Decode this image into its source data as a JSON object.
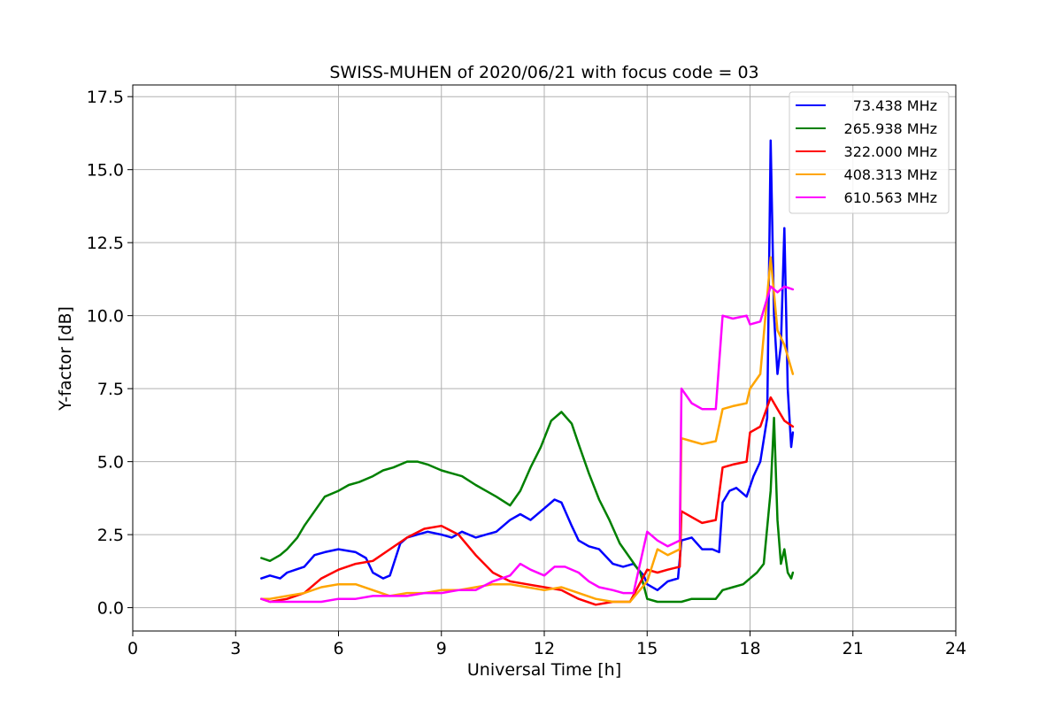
{
  "chart_data": {
    "type": "line",
    "title": "SWISS-MUHEN of 2020/06/21 with focus code = 03",
    "xlabel": "Universal Time [h]",
    "ylabel": "Y-factor [dB]",
    "xlim": [
      0,
      24
    ],
    "ylim": [
      -0.8,
      17.9
    ],
    "xticks": [
      0,
      3,
      6,
      9,
      12,
      15,
      18,
      21,
      24
    ],
    "xtick_labels": [
      "0",
      "3",
      "6",
      "9",
      "12",
      "15",
      "18",
      "21",
      "24"
    ],
    "yticks": [
      0.0,
      2.5,
      5.0,
      7.5,
      10.0,
      12.5,
      15.0,
      17.5
    ],
    "ytick_labels": [
      "0.0",
      "2.5",
      "5.0",
      "7.5",
      "10.0",
      "12.5",
      "15.0",
      "17.5"
    ],
    "grid": true,
    "legend_position": "top-right",
    "series": [
      {
        "name": " 73.438 MHz",
        "color": "#0000ff",
        "x": [
          3.75,
          4.0,
          4.3,
          4.5,
          4.75,
          5.0,
          5.3,
          5.6,
          6.0,
          6.5,
          6.8,
          7.0,
          7.3,
          7.5,
          7.8,
          8.0,
          8.3,
          8.6,
          9.0,
          9.3,
          9.6,
          10.0,
          10.3,
          10.6,
          11.0,
          11.3,
          11.6,
          12.0,
          12.3,
          12.5,
          12.8,
          13.0,
          13.3,
          13.6,
          14.0,
          14.3,
          14.6,
          14.9,
          15.0,
          15.3,
          15.6,
          15.9,
          16.0,
          16.3,
          16.6,
          16.9,
          17.1,
          17.2,
          17.4,
          17.6,
          17.9,
          18.1,
          18.3,
          18.5,
          18.6,
          18.7,
          18.8,
          18.9,
          19.0,
          19.1,
          19.2,
          19.25
        ],
        "y": [
          1.0,
          1.1,
          1.0,
          1.2,
          1.3,
          1.4,
          1.8,
          1.9,
          2.0,
          1.9,
          1.7,
          1.2,
          1.0,
          1.1,
          2.2,
          2.4,
          2.5,
          2.6,
          2.5,
          2.4,
          2.6,
          2.4,
          2.5,
          2.6,
          3.0,
          3.2,
          3.0,
          3.4,
          3.7,
          3.6,
          2.8,
          2.3,
          2.1,
          2.0,
          1.5,
          1.4,
          1.5,
          1.1,
          0.8,
          0.6,
          0.9,
          1.0,
          2.3,
          2.4,
          2.0,
          2.0,
          1.9,
          3.6,
          4.0,
          4.1,
          3.8,
          4.5,
          5.0,
          6.5,
          16.0,
          10.0,
          8.0,
          9.0,
          13.0,
          7.5,
          5.5,
          6.0
        ]
      },
      {
        "name": "265.938 MHz",
        "color": "#008000",
        "x": [
          3.75,
          4.0,
          4.3,
          4.5,
          4.8,
          5.0,
          5.3,
          5.6,
          6.0,
          6.3,
          6.6,
          7.0,
          7.3,
          7.6,
          8.0,
          8.3,
          8.6,
          9.0,
          9.3,
          9.6,
          10.0,
          10.3,
          10.6,
          11.0,
          11.3,
          11.6,
          11.9,
          12.2,
          12.5,
          12.8,
          13.0,
          13.3,
          13.6,
          13.9,
          14.2,
          14.5,
          14.8,
          15.0,
          15.3,
          15.6,
          16.0,
          16.3,
          16.6,
          17.0,
          17.2,
          17.5,
          17.8,
          18.0,
          18.2,
          18.4,
          18.6,
          18.7,
          18.8,
          18.9,
          19.0,
          19.1,
          19.2,
          19.25
        ],
        "y": [
          1.7,
          1.6,
          1.8,
          2.0,
          2.4,
          2.8,
          3.3,
          3.8,
          4.0,
          4.2,
          4.3,
          4.5,
          4.7,
          4.8,
          5.0,
          5.0,
          4.9,
          4.7,
          4.6,
          4.5,
          4.2,
          4.0,
          3.8,
          3.5,
          4.0,
          4.8,
          5.5,
          6.4,
          6.7,
          6.3,
          5.6,
          4.6,
          3.7,
          3.0,
          2.2,
          1.7,
          1.2,
          0.3,
          0.2,
          0.2,
          0.2,
          0.3,
          0.3,
          0.3,
          0.6,
          0.7,
          0.8,
          1.0,
          1.2,
          1.5,
          4.0,
          6.5,
          3.0,
          1.5,
          2.0,
          1.2,
          1.0,
          1.2
        ]
      },
      {
        "name": "322.000 MHz",
        "color": "#ff0000",
        "x": [
          3.75,
          4.0,
          4.5,
          5.0,
          5.5,
          6.0,
          6.5,
          7.0,
          7.5,
          8.0,
          8.5,
          9.0,
          9.5,
          10.0,
          10.5,
          11.0,
          11.5,
          12.0,
          12.5,
          13.0,
          13.5,
          14.0,
          14.5,
          15.0,
          15.3,
          15.6,
          15.95,
          16.0,
          16.3,
          16.6,
          17.0,
          17.2,
          17.5,
          17.9,
          18.0,
          18.3,
          18.6,
          18.8,
          19.0,
          19.25
        ],
        "y": [
          0.3,
          0.2,
          0.3,
          0.5,
          1.0,
          1.3,
          1.5,
          1.6,
          2.0,
          2.4,
          2.7,
          2.8,
          2.5,
          1.8,
          1.2,
          0.9,
          0.8,
          0.7,
          0.6,
          0.3,
          0.1,
          0.2,
          0.2,
          1.3,
          1.2,
          1.3,
          1.4,
          3.3,
          3.1,
          2.9,
          3.0,
          4.8,
          4.9,
          5.0,
          6.0,
          6.2,
          7.2,
          6.8,
          6.4,
          6.2
        ]
      },
      {
        "name": "408.313 MHz",
        "color": "#ffa500",
        "x": [
          3.75,
          4.0,
          4.5,
          5.0,
          5.5,
          6.0,
          6.5,
          7.0,
          7.5,
          8.0,
          8.5,
          9.0,
          9.5,
          10.0,
          10.5,
          11.0,
          11.5,
          12.0,
          12.5,
          13.0,
          13.5,
          14.0,
          14.5,
          15.0,
          15.3,
          15.6,
          15.95,
          16.0,
          16.3,
          16.6,
          17.0,
          17.2,
          17.5,
          17.9,
          18.0,
          18.3,
          18.6,
          18.8,
          19.0,
          19.25
        ],
        "y": [
          0.3,
          0.3,
          0.4,
          0.5,
          0.7,
          0.8,
          0.8,
          0.6,
          0.4,
          0.5,
          0.5,
          0.6,
          0.6,
          0.7,
          0.8,
          0.8,
          0.7,
          0.6,
          0.7,
          0.5,
          0.3,
          0.2,
          0.2,
          0.9,
          2.0,
          1.8,
          2.0,
          5.8,
          5.7,
          5.6,
          5.7,
          6.8,
          6.9,
          7.0,
          7.5,
          8.0,
          12.0,
          9.5,
          9.0,
          8.0
        ]
      },
      {
        "name": "610.563 MHz",
        "color": "#ff00ff",
        "x": [
          3.75,
          4.0,
          4.5,
          5.0,
          5.5,
          6.0,
          6.5,
          7.0,
          7.5,
          8.0,
          8.5,
          9.0,
          9.5,
          10.0,
          10.5,
          11.0,
          11.3,
          11.6,
          12.0,
          12.3,
          12.6,
          13.0,
          13.3,
          13.6,
          14.0,
          14.3,
          14.6,
          15.0,
          15.3,
          15.6,
          15.95,
          16.0,
          16.3,
          16.6,
          17.0,
          17.2,
          17.5,
          17.9,
          18.0,
          18.3,
          18.6,
          18.8,
          19.0,
          19.25
        ],
        "y": [
          0.3,
          0.2,
          0.2,
          0.2,
          0.2,
          0.3,
          0.3,
          0.4,
          0.4,
          0.4,
          0.5,
          0.5,
          0.6,
          0.6,
          0.9,
          1.1,
          1.5,
          1.3,
          1.1,
          1.4,
          1.4,
          1.2,
          0.9,
          0.7,
          0.6,
          0.5,
          0.5,
          2.6,
          2.3,
          2.1,
          2.3,
          7.5,
          7.0,
          6.8,
          6.8,
          10.0,
          9.9,
          10.0,
          9.7,
          9.8,
          11.0,
          10.8,
          11.0,
          10.9
        ]
      }
    ]
  }
}
